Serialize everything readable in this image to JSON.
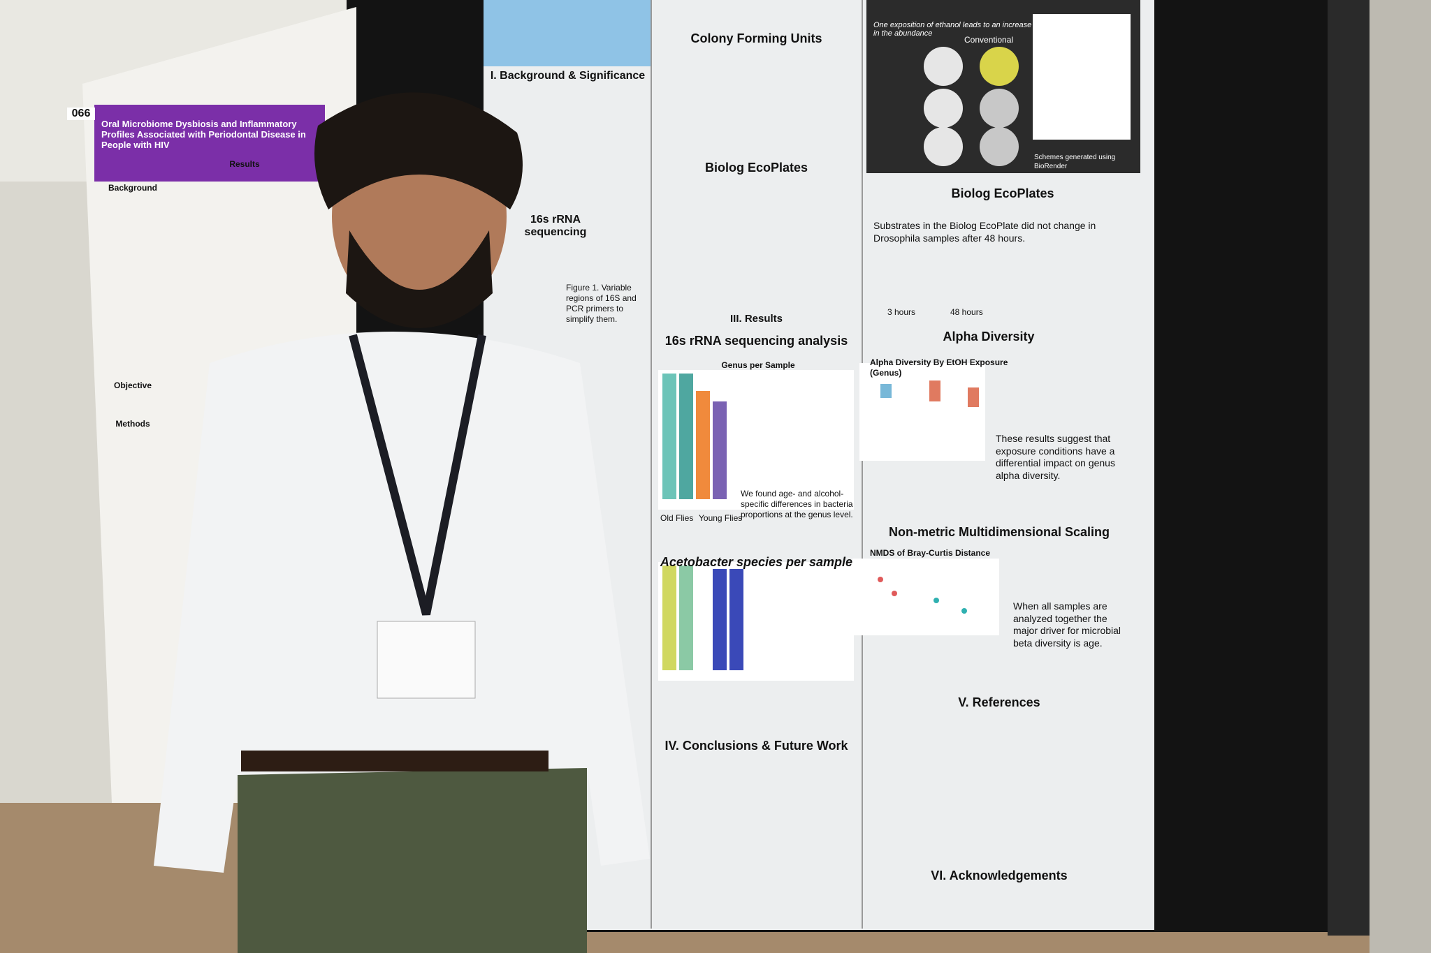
{
  "left_poster": {
    "number": "066",
    "title": "Oral Microbiome Dysbiosis and Inflammatory Profiles Associated with Periodontal Disease in People with HIV",
    "sections": [
      "Background",
      "Results",
      "Objective",
      "Methods"
    ]
  },
  "main_poster": {
    "column1": {
      "background": "I. Background & Significance",
      "sequencing": "16s rRNA sequencing",
      "figure_note": "Figure 1. Variable regions of 16S and PCR primers to simplify them."
    },
    "column2": {
      "cfu": "Colony Forming Units",
      "biolog": "Biolog EcoPlates",
      "results": "III. Results",
      "analysis": "16s rRNA sequencing analysis",
      "genus_title": "Genus per Sample",
      "genus_note": "We found age- and alcohol-specific differences in bacteria proportions at the genus level.",
      "old": "Old Flies",
      "young": "Young Flies",
      "acetobacter": "Acetobacter species per sample",
      "conclusions": "IV. Conclusions & Future Work"
    },
    "column3": {
      "headline": "One exposition of ethanol leads to an increase in the abundance",
      "conventional": "Conventional",
      "biorender": "Schemes generated using BioRender",
      "biolog": "Biolog EcoPlates",
      "biolog_note": "Substrates in the Biolog EcoPlate did not change in Drosophila samples after 48 hours.",
      "hours3": "3 hours",
      "hours48": "48 hours",
      "alpha": "Alpha Diversity",
      "alpha_plot": "Alpha Diversity By EtOH Exposure (Genus)",
      "alpha_note": "These results suggest that exposure conditions have a differential impact on genus alpha diversity.",
      "nmds": "Non-metric Multidimensional Scaling",
      "nmds_plot": "NMDS of Bray-Curtis Distance",
      "nmds_note": "When all samples are analyzed together the major driver for microbial beta diversity is age.",
      "references": "V. References",
      "acknowledgements": "VI. Acknowledgements"
    }
  }
}
